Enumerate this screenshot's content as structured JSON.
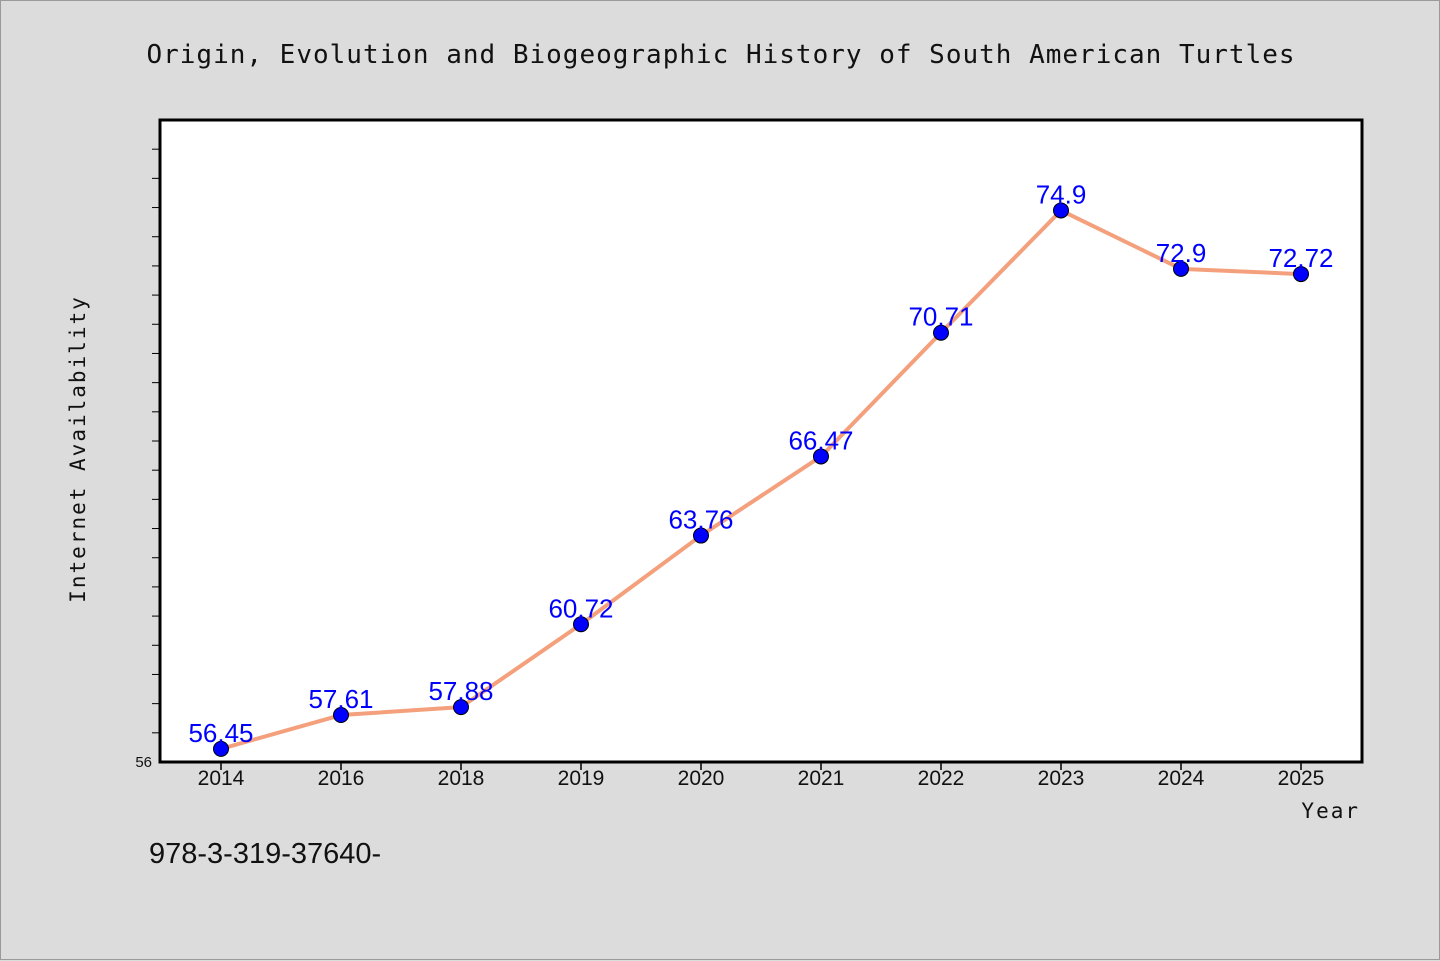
{
  "chart_data": {
    "type": "line",
    "title": "Origin, Evolution and Biogeographic History of South American Turtles",
    "xlabel": "Year",
    "ylabel": "Internet Availability",
    "categories": [
      "2014",
      "2016",
      "2018",
      "2019",
      "2020",
      "2021",
      "2022",
      "2023",
      "2024",
      "2025"
    ],
    "series": [
      {
        "values": [
          56.45,
          57.61,
          57.88,
          60.72,
          63.76,
          66.47,
          70.71,
          74.9,
          72.9,
          72.72
        ],
        "labels": [
          "56.45",
          "57.61",
          "57.88",
          "60.72",
          "63.76",
          "66.47",
          "70.71",
          "74.9",
          "72.9",
          "72.72"
        ],
        "line_color": "#f4a07c",
        "marker_color": "#0000ff",
        "label_color": "#0000ff"
      }
    ],
    "ylim": [
      56,
      78
    ],
    "ytick_labels": [
      "56"
    ],
    "grid": false,
    "legend": "none"
  },
  "footer": {
    "text": "978-3-319-37640-"
  },
  "colors": {
    "background": "#dcdcdc",
    "plot_area": "#ffffff",
    "axis": "#000000"
  }
}
